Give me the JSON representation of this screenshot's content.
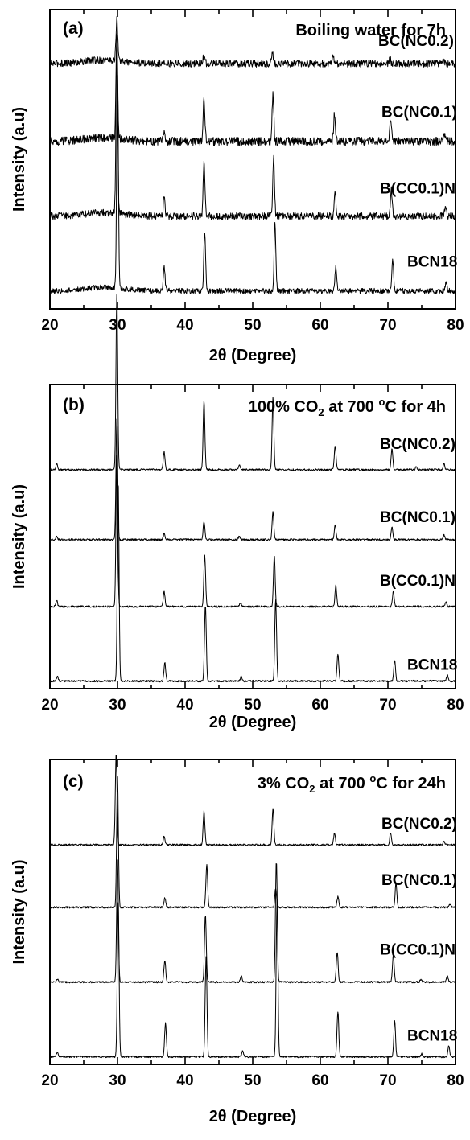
{
  "chart_data": [
    {
      "type": "line",
      "panel_label": "(a)",
      "condition": "Boiling water for 7h",
      "xlabel": "2θ (Degree)",
      "ylabel": "Intensity (a.u)",
      "xlim": [
        20,
        80
      ],
      "x_ticks": [
        "20",
        "30",
        "40",
        "50",
        "60",
        "70",
        "80"
      ],
      "legend": "labels above each trace, right side",
      "series": [
        {
          "name": "BC(NC0.2)",
          "baseline": 0.82,
          "noise": 0.012,
          "peaks": [
            [
              29.9,
              0.14
            ],
            [
              36.9,
              0.01
            ],
            [
              42.8,
              0.03
            ],
            [
              52.9,
              0.035
            ],
            [
              61.9,
              0.025
            ],
            [
              70.3,
              0.015
            ],
            [
              78.3,
              0.01
            ]
          ]
        },
        {
          "name": "BC(NC0.1)",
          "baseline": 0.56,
          "noise": 0.014,
          "peaks": [
            [
              29.9,
              0.34
            ],
            [
              36.9,
              0.035
            ],
            [
              42.8,
              0.15
            ],
            [
              53.0,
              0.16
            ],
            [
              62.1,
              0.09
            ],
            [
              70.4,
              0.075
            ],
            [
              78.4,
              0.025
            ]
          ]
        },
        {
          "name": "B(CC0.1)N",
          "baseline": 0.31,
          "noise": 0.012,
          "peaks": [
            [
              29.9,
              0.58
            ],
            [
              36.9,
              0.06
            ],
            [
              42.8,
              0.18
            ],
            [
              53.1,
              0.2
            ],
            [
              62.2,
              0.08
            ],
            [
              70.5,
              0.09
            ],
            [
              78.5,
              0.03
            ]
          ]
        },
        {
          "name": "BCN18",
          "baseline": 0.06,
          "noise": 0.009,
          "peaks": [
            [
              30.0,
              0.72
            ],
            [
              36.9,
              0.08
            ],
            [
              42.9,
              0.2
            ],
            [
              53.3,
              0.23
            ],
            [
              62.3,
              0.08
            ],
            [
              70.7,
              0.11
            ],
            [
              78.6,
              0.03
            ]
          ]
        }
      ]
    },
    {
      "type": "line",
      "panel_label": "(b)",
      "condition": "100% CO2 at 700°C for 4h",
      "xlabel": "2θ (Degree)",
      "ylabel": "Intensity (a.u)",
      "xlim": [
        20,
        80
      ],
      "x_ticks": [
        "20",
        "30",
        "40",
        "50",
        "60",
        "70",
        "80"
      ],
      "legend": "labels above each trace, right side",
      "series": [
        {
          "name": "BC(NC0.2)",
          "baseline": 0.72,
          "noise": 0.003,
          "peaks": [
            [
              21.0,
              0.02
            ],
            [
              29.9,
              0.58
            ],
            [
              36.9,
              0.06
            ],
            [
              42.8,
              0.23
            ],
            [
              48.0,
              0.015
            ],
            [
              53.0,
              0.24
            ],
            [
              62.2,
              0.08
            ],
            [
              70.6,
              0.07
            ],
            [
              74.2,
              0.01
            ],
            [
              78.3,
              0.02
            ]
          ]
        },
        {
          "name": "BC(NC0.1)",
          "baseline": 0.49,
          "noise": 0.003,
          "peaks": [
            [
              21.0,
              0.01
            ],
            [
              29.9,
              0.4
            ],
            [
              36.9,
              0.02
            ],
            [
              42.8,
              0.06
            ],
            [
              48.0,
              0.01
            ],
            [
              53.0,
              0.09
            ],
            [
              62.2,
              0.05
            ],
            [
              70.6,
              0.04
            ],
            [
              78.3,
              0.015
            ]
          ]
        },
        {
          "name": "B(CC0.1)N",
          "baseline": 0.27,
          "noise": 0.003,
          "peaks": [
            [
              21.0,
              0.02
            ],
            [
              29.9,
              0.5
            ],
            [
              36.9,
              0.05
            ],
            [
              42.9,
              0.17
            ],
            [
              48.2,
              0.012
            ],
            [
              53.2,
              0.17
            ],
            [
              62.3,
              0.07
            ],
            [
              70.8,
              0.05
            ],
            [
              78.6,
              0.015
            ]
          ]
        },
        {
          "name": "BCN18",
          "baseline": 0.025,
          "noise": 0.003,
          "peaks": [
            [
              21.1,
              0.015
            ],
            [
              30.1,
              0.66
            ],
            [
              37.0,
              0.06
            ],
            [
              43.0,
              0.25
            ],
            [
              48.3,
              0.015
            ],
            [
              53.4,
              0.27
            ],
            [
              62.6,
              0.09
            ],
            [
              71.0,
              0.07
            ],
            [
              78.8,
              0.02
            ]
          ]
        }
      ]
    },
    {
      "type": "line",
      "panel_label": "(c)",
      "condition": "3% CO2 at 700°C for 24h",
      "xlabel": "2θ (Degree)",
      "ylabel": "Intensity (a.u)",
      "xlim": [
        20,
        80
      ],
      "x_ticks": [
        "20",
        "30",
        "40",
        "50",
        "60",
        "70",
        "80"
      ],
      "legend": "labels above each trace, right side",
      "series": [
        {
          "name": "BC(NC0.2)",
          "baseline": 0.72,
          "noise": 0.003,
          "peaks": [
            [
              29.8,
              0.3
            ],
            [
              36.9,
              0.03
            ],
            [
              42.8,
              0.11
            ],
            [
              53.0,
              0.12
            ],
            [
              62.1,
              0.04
            ],
            [
              70.4,
              0.04
            ],
            [
              78.3,
              0.01
            ]
          ]
        },
        {
          "name": "BC(NC0.1)",
          "baseline": 0.515,
          "noise": 0.003,
          "peaks": [
            [
              30.0,
              0.43
            ],
            [
              37.0,
              0.03
            ],
            [
              43.2,
              0.14
            ],
            [
              53.4,
              0.06
            ],
            [
              62.6,
              0.035
            ],
            [
              71.2,
              0.08
            ],
            [
              79.2,
              0.01
            ]
          ]
        },
        {
          "name": "B(CC0.1)N",
          "baseline": 0.27,
          "noise": 0.003,
          "peaks": [
            [
              21.1,
              0.01
            ],
            [
              30.0,
              0.4
            ],
            [
              37.0,
              0.07
            ],
            [
              43.0,
              0.22
            ],
            [
              48.3,
              0.02
            ],
            [
              53.5,
              0.4
            ],
            [
              62.5,
              0.1
            ],
            [
              70.8,
              0.09
            ],
            [
              74.9,
              0.01
            ],
            [
              78.8,
              0.02
            ]
          ]
        },
        {
          "name": "BCN18",
          "baseline": 0.025,
          "noise": 0.003,
          "peaks": [
            [
              21.1,
              0.015
            ],
            [
              30.1,
              0.52
            ],
            [
              37.1,
              0.11
            ],
            [
              43.1,
              0.33
            ],
            [
              48.5,
              0.02
            ],
            [
              53.6,
              0.52
            ],
            [
              62.6,
              0.15
            ],
            [
              71.0,
              0.12
            ],
            [
              75.0,
              0.01
            ],
            [
              79.0,
              0.035
            ]
          ]
        }
      ]
    }
  ]
}
